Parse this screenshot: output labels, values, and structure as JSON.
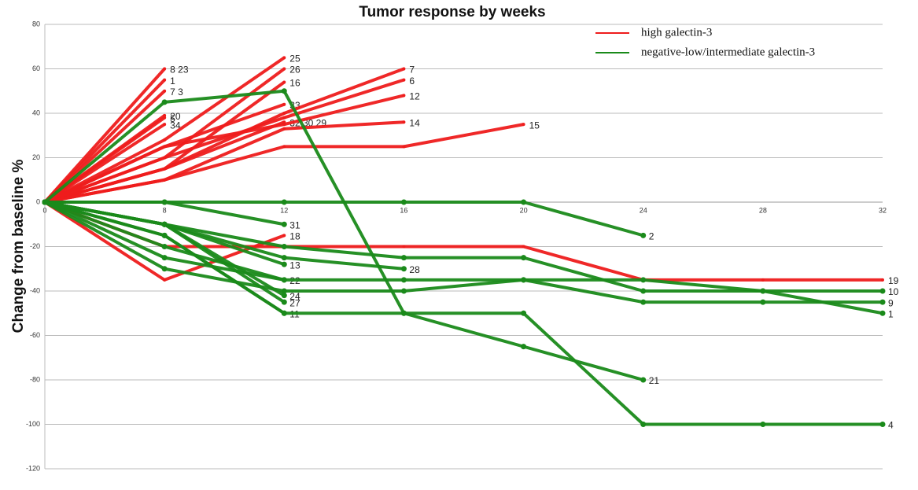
{
  "chart_data": {
    "type": "line",
    "title": "Tumor response by weeks",
    "ylabel": "Change from baseline %",
    "categories": [
      "0",
      "8",
      "12",
      "16",
      "20",
      "24",
      "28",
      "32"
    ],
    "ylim": [
      -120,
      80
    ],
    "yticks": [
      -120,
      -100,
      -80,
      -60,
      -40,
      -20,
      0,
      20,
      40,
      60,
      80
    ],
    "grid": true,
    "legend": "upper right",
    "series": [
      {
        "name": "high galectin-3",
        "color": "#ee1c1c",
        "lines": [
          {
            "label": "8 23",
            "values": [
              0,
              60,
              null,
              null,
              null,
              null,
              null,
              null
            ]
          },
          {
            "label": "1",
            "values": [
              0,
              55,
              null,
              null,
              null,
              null,
              null,
              null
            ]
          },
          {
            "label": "7 3",
            "values": [
              0,
              50,
              null,
              null,
              null,
              null,
              null,
              null
            ]
          },
          {
            "label": "5",
            "values": [
              0,
              38,
              null,
              null,
              null,
              null,
              null,
              null
            ]
          },
          {
            "label": "20",
            "values": [
              0,
              39,
              null,
              null,
              null,
              null,
              null,
              null
            ]
          },
          {
            "label": "34",
            "values": [
              0,
              35,
              null,
              null,
              null,
              null,
              null,
              null
            ]
          },
          {
            "label": "25",
            "values": [
              0,
              28,
              65,
              null,
              null,
              null,
              null,
              null
            ]
          },
          {
            "label": "26",
            "values": [
              0,
              20,
              60,
              null,
              null,
              null,
              null,
              null
            ]
          },
          {
            "label": "16",
            "values": [
              0,
              15,
              54,
              null,
              null,
              null,
              null,
              null
            ]
          },
          {
            "label": "33",
            "values": [
              0,
              25,
              44,
              null,
              null,
              null,
              null,
              null
            ]
          },
          {
            "label": "32 30 29",
            "values": [
              0,
              15,
              36,
              null,
              null,
              null,
              null,
              null
            ]
          },
          {
            "label": "7",
            "values": [
              0,
              15,
              40,
              60,
              null,
              null,
              null,
              null
            ]
          },
          {
            "label": "6",
            "values": [
              0,
              20,
              38,
              55,
              null,
              null,
              null,
              null
            ]
          },
          {
            "label": "12",
            "values": [
              0,
              25,
              35,
              48,
              null,
              null,
              null,
              null
            ]
          },
          {
            "label": "14",
            "values": [
              0,
              10,
              33,
              36,
              null,
              null,
              null,
              null
            ]
          },
          {
            "label": "15",
            "values": [
              0,
              10,
              25,
              25,
              35,
              null,
              null,
              null
            ]
          },
          {
            "label": "18",
            "values": [
              0,
              -35,
              -15,
              null,
              null,
              null,
              null,
              null
            ]
          },
          {
            "label": "19",
            "values": [
              0,
              -20,
              -20,
              -20,
              -20,
              -35,
              -35,
              -35
            ]
          }
        ]
      },
      {
        "name": "negative-low/intermediate galectin-3",
        "color": "#1a8a1a",
        "lines": [
          {
            "label": "2",
            "values": [
              0,
              0,
              0,
              0,
              0,
              -15,
              null,
              null
            ]
          },
          {
            "label": "31",
            "values": [
              0,
              0,
              -10,
              null,
              null,
              null,
              null,
              null
            ]
          },
          {
            "label": "28",
            "values": [
              0,
              -10,
              -25,
              -30,
              null,
              null,
              null,
              null
            ]
          },
          {
            "label": "13",
            "values": [
              0,
              -10,
              -28,
              null,
              null,
              null,
              null,
              null
            ]
          },
          {
            "label": "22",
            "values": [
              0,
              -20,
              -35,
              null,
              null,
              null,
              null,
              null
            ]
          },
          {
            "label": "24",
            "values": [
              0,
              -10,
              -42,
              null,
              null,
              null,
              null,
              null
            ]
          },
          {
            "label": "27",
            "values": [
              0,
              -10,
              -45,
              null,
              null,
              null,
              null,
              null
            ]
          },
          {
            "label": "11",
            "values": [
              0,
              -15,
              -50,
              null,
              null,
              null,
              null,
              null
            ]
          },
          {
            "label": "21",
            "values": [
              0,
              -15,
              -50,
              -50,
              -65,
              -80,
              null,
              null
            ]
          },
          {
            "label": "10",
            "values": [
              0,
              -10,
              -20,
              -25,
              -25,
              -40,
              -40,
              -40
            ]
          },
          {
            "label": "9",
            "values": [
              0,
              -25,
              -35,
              -35,
              -35,
              -45,
              -45,
              -45
            ]
          },
          {
            "label": "1",
            "values": [
              0,
              -30,
              -40,
              -40,
              -35,
              -35,
              -40,
              -50
            ]
          },
          {
            "label": "4",
            "values": [
              0,
              45,
              50,
              -50,
              -50,
              -100,
              -100,
              -100
            ]
          }
        ]
      }
    ]
  }
}
